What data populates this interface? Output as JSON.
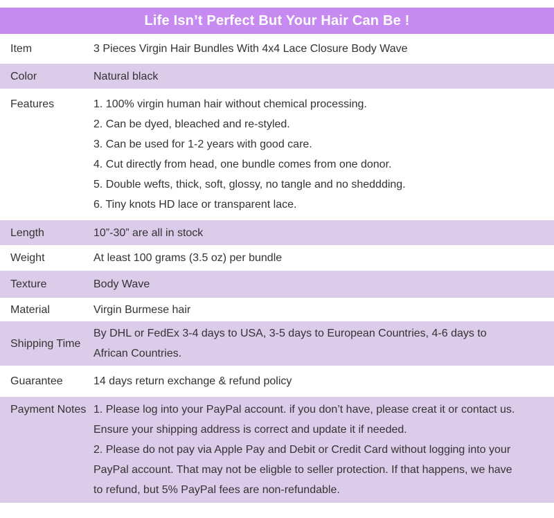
{
  "banner": {
    "title": "Life Isn’t Perfect But Your Hair Can Be !"
  },
  "colors": {
    "banner_bg": "#c68af0",
    "row_shade_bg": "#dccbe9",
    "text": "#333333",
    "banner_text": "#ffffff"
  },
  "table": {
    "rows": [
      {
        "label": "Item",
        "shade": false,
        "top": false,
        "lines": [
          "3 Pieces Virgin Hair Bundles With 4x4 Lace Closure Body Wave"
        ]
      },
      {
        "label": "Color",
        "shade": true,
        "top": false,
        "lines": [
          "Natural black"
        ]
      },
      {
        "label": "Features",
        "shade": false,
        "top": true,
        "lines": [
          "1. 100% virgin human hair without chemical processing.",
          "2. Can be dyed, bleached and re-styled.",
          "3. Can be used for 1-2 years with good care.",
          "4. Cut directly from head, one bundle comes from one donor.",
          "5. Double wefts, thick, soft, glossy, no tangle and no sheddding.",
          "6. Tiny knots HD lace or transparent lace."
        ]
      },
      {
        "label": "Length",
        "shade": true,
        "top": false,
        "lines": [
          "10”-30” are all in stock"
        ]
      },
      {
        "label": "Weight",
        "shade": false,
        "top": false,
        "lines": [
          "At least 100 grams (3.5 oz) per bundle"
        ]
      },
      {
        "label": "Texture",
        "shade": true,
        "top": false,
        "lines": [
          "Body Wave"
        ]
      },
      {
        "label": "Material",
        "shade": false,
        "top": false,
        "lines": [
          "Virgin Burmese hair"
        ]
      },
      {
        "label": "Shipping Time",
        "shade": true,
        "top": false,
        "lines": [
          "By DHL or FedEx 3-4 days to USA, 3-5 days to European Countries, 4-6 days to",
          "African Countries."
        ]
      },
      {
        "label": "Guarantee",
        "shade": false,
        "top": false,
        "lines": [
          "14 days return exchange & refund policy"
        ]
      },
      {
        "label": "Payment Notes",
        "shade": true,
        "top": true,
        "lines": [
          "1. Please log into your PayPal account. if you don’t have, please creat it or contact us.",
          "Ensure your shipping address is correct and update it if needed.",
          "2. Please do not pay via Apple Pay and Debit or Credit Card without logging into your",
          "PayPal account. That may not be eligble to seller protection. If that happens, we have",
          "to refund, but 5% PayPal fees are non-refundable."
        ]
      }
    ]
  }
}
